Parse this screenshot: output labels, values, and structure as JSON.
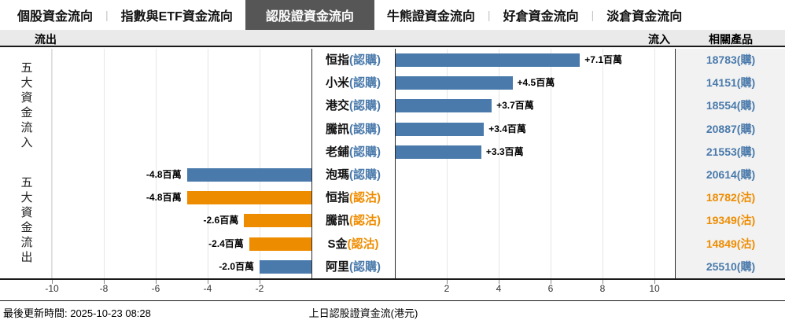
{
  "tabs": [
    {
      "label": "個股資金流向",
      "active": false
    },
    {
      "label": "指數與ETF資金流向",
      "active": false
    },
    {
      "label": "認股證資金流向",
      "active": true
    },
    {
      "label": "牛熊證資金流向",
      "active": false
    },
    {
      "label": "好倉資金流向",
      "active": false
    },
    {
      "label": "淡倉資金流向",
      "active": false
    }
  ],
  "header": {
    "outflow": "流出",
    "inflow": "流入",
    "related": "相關產品"
  },
  "sidebar": {
    "top_section": "五大資金流入",
    "bottom_section": "五大資金流出"
  },
  "colors": {
    "call_blue": "#4a7aab",
    "put_orange": "#ee8c00"
  },
  "chart_data": {
    "type": "bar",
    "orientation": "horizontal-tornado",
    "title": "上日認股證資金流(港元)",
    "unit": "百萬",
    "xticks": [
      -10,
      -8,
      -6,
      -4,
      -2,
      2,
      4,
      6,
      8,
      10
    ],
    "xlim": [
      -10,
      10.8
    ],
    "grid": true,
    "rows": [
      {
        "name": "恒指",
        "type_label": "(認購)",
        "value": 7.1,
        "value_label": "+7.1百萬",
        "product": "18783(購)",
        "color": "call_blue",
        "section": "inflow"
      },
      {
        "name": "小米",
        "type_label": "(認購)",
        "value": 4.5,
        "value_label": "+4.5百萬",
        "product": "14151(購)",
        "color": "call_blue",
        "section": "inflow"
      },
      {
        "name": "港交",
        "type_label": "(認購)",
        "value": 3.7,
        "value_label": "+3.7百萬",
        "product": "18554(購)",
        "color": "call_blue",
        "section": "inflow"
      },
      {
        "name": "騰訊",
        "type_label": "(認購)",
        "value": 3.4,
        "value_label": "+3.4百萬",
        "product": "20887(購)",
        "color": "call_blue",
        "section": "inflow"
      },
      {
        "name": "老鋪",
        "type_label": "(認購)",
        "value": 3.3,
        "value_label": "+3.3百萬",
        "product": "21553(購)",
        "color": "call_blue",
        "section": "inflow"
      },
      {
        "name": "泡瑪",
        "type_label": "(認購)",
        "value": -4.8,
        "value_label": "-4.8百萬",
        "product": "20614(購)",
        "color": "call_blue",
        "section": "outflow"
      },
      {
        "name": "恒指",
        "type_label": "(認沽)",
        "value": -4.8,
        "value_label": "-4.8百萬",
        "product": "18782(沽)",
        "color": "put_orange",
        "section": "outflow"
      },
      {
        "name": "騰訊",
        "type_label": "(認沽)",
        "value": -2.6,
        "value_label": "-2.6百萬",
        "product": "19349(沽)",
        "color": "put_orange",
        "section": "outflow"
      },
      {
        "name": "S金",
        "type_label": "(認沽)",
        "value": -2.4,
        "value_label": "-2.4百萬",
        "product": "14849(沽)",
        "color": "put_orange",
        "section": "outflow"
      },
      {
        "name": "阿里",
        "type_label": "(認購)",
        "value": -2.0,
        "value_label": "-2.0百萬",
        "product": "25510(購)",
        "color": "call_blue",
        "section": "outflow"
      }
    ]
  },
  "footer": {
    "updated": "最後更新時間: 2025-10-23 08:28",
    "axis_title": "上日認股證資金流(港元)"
  }
}
